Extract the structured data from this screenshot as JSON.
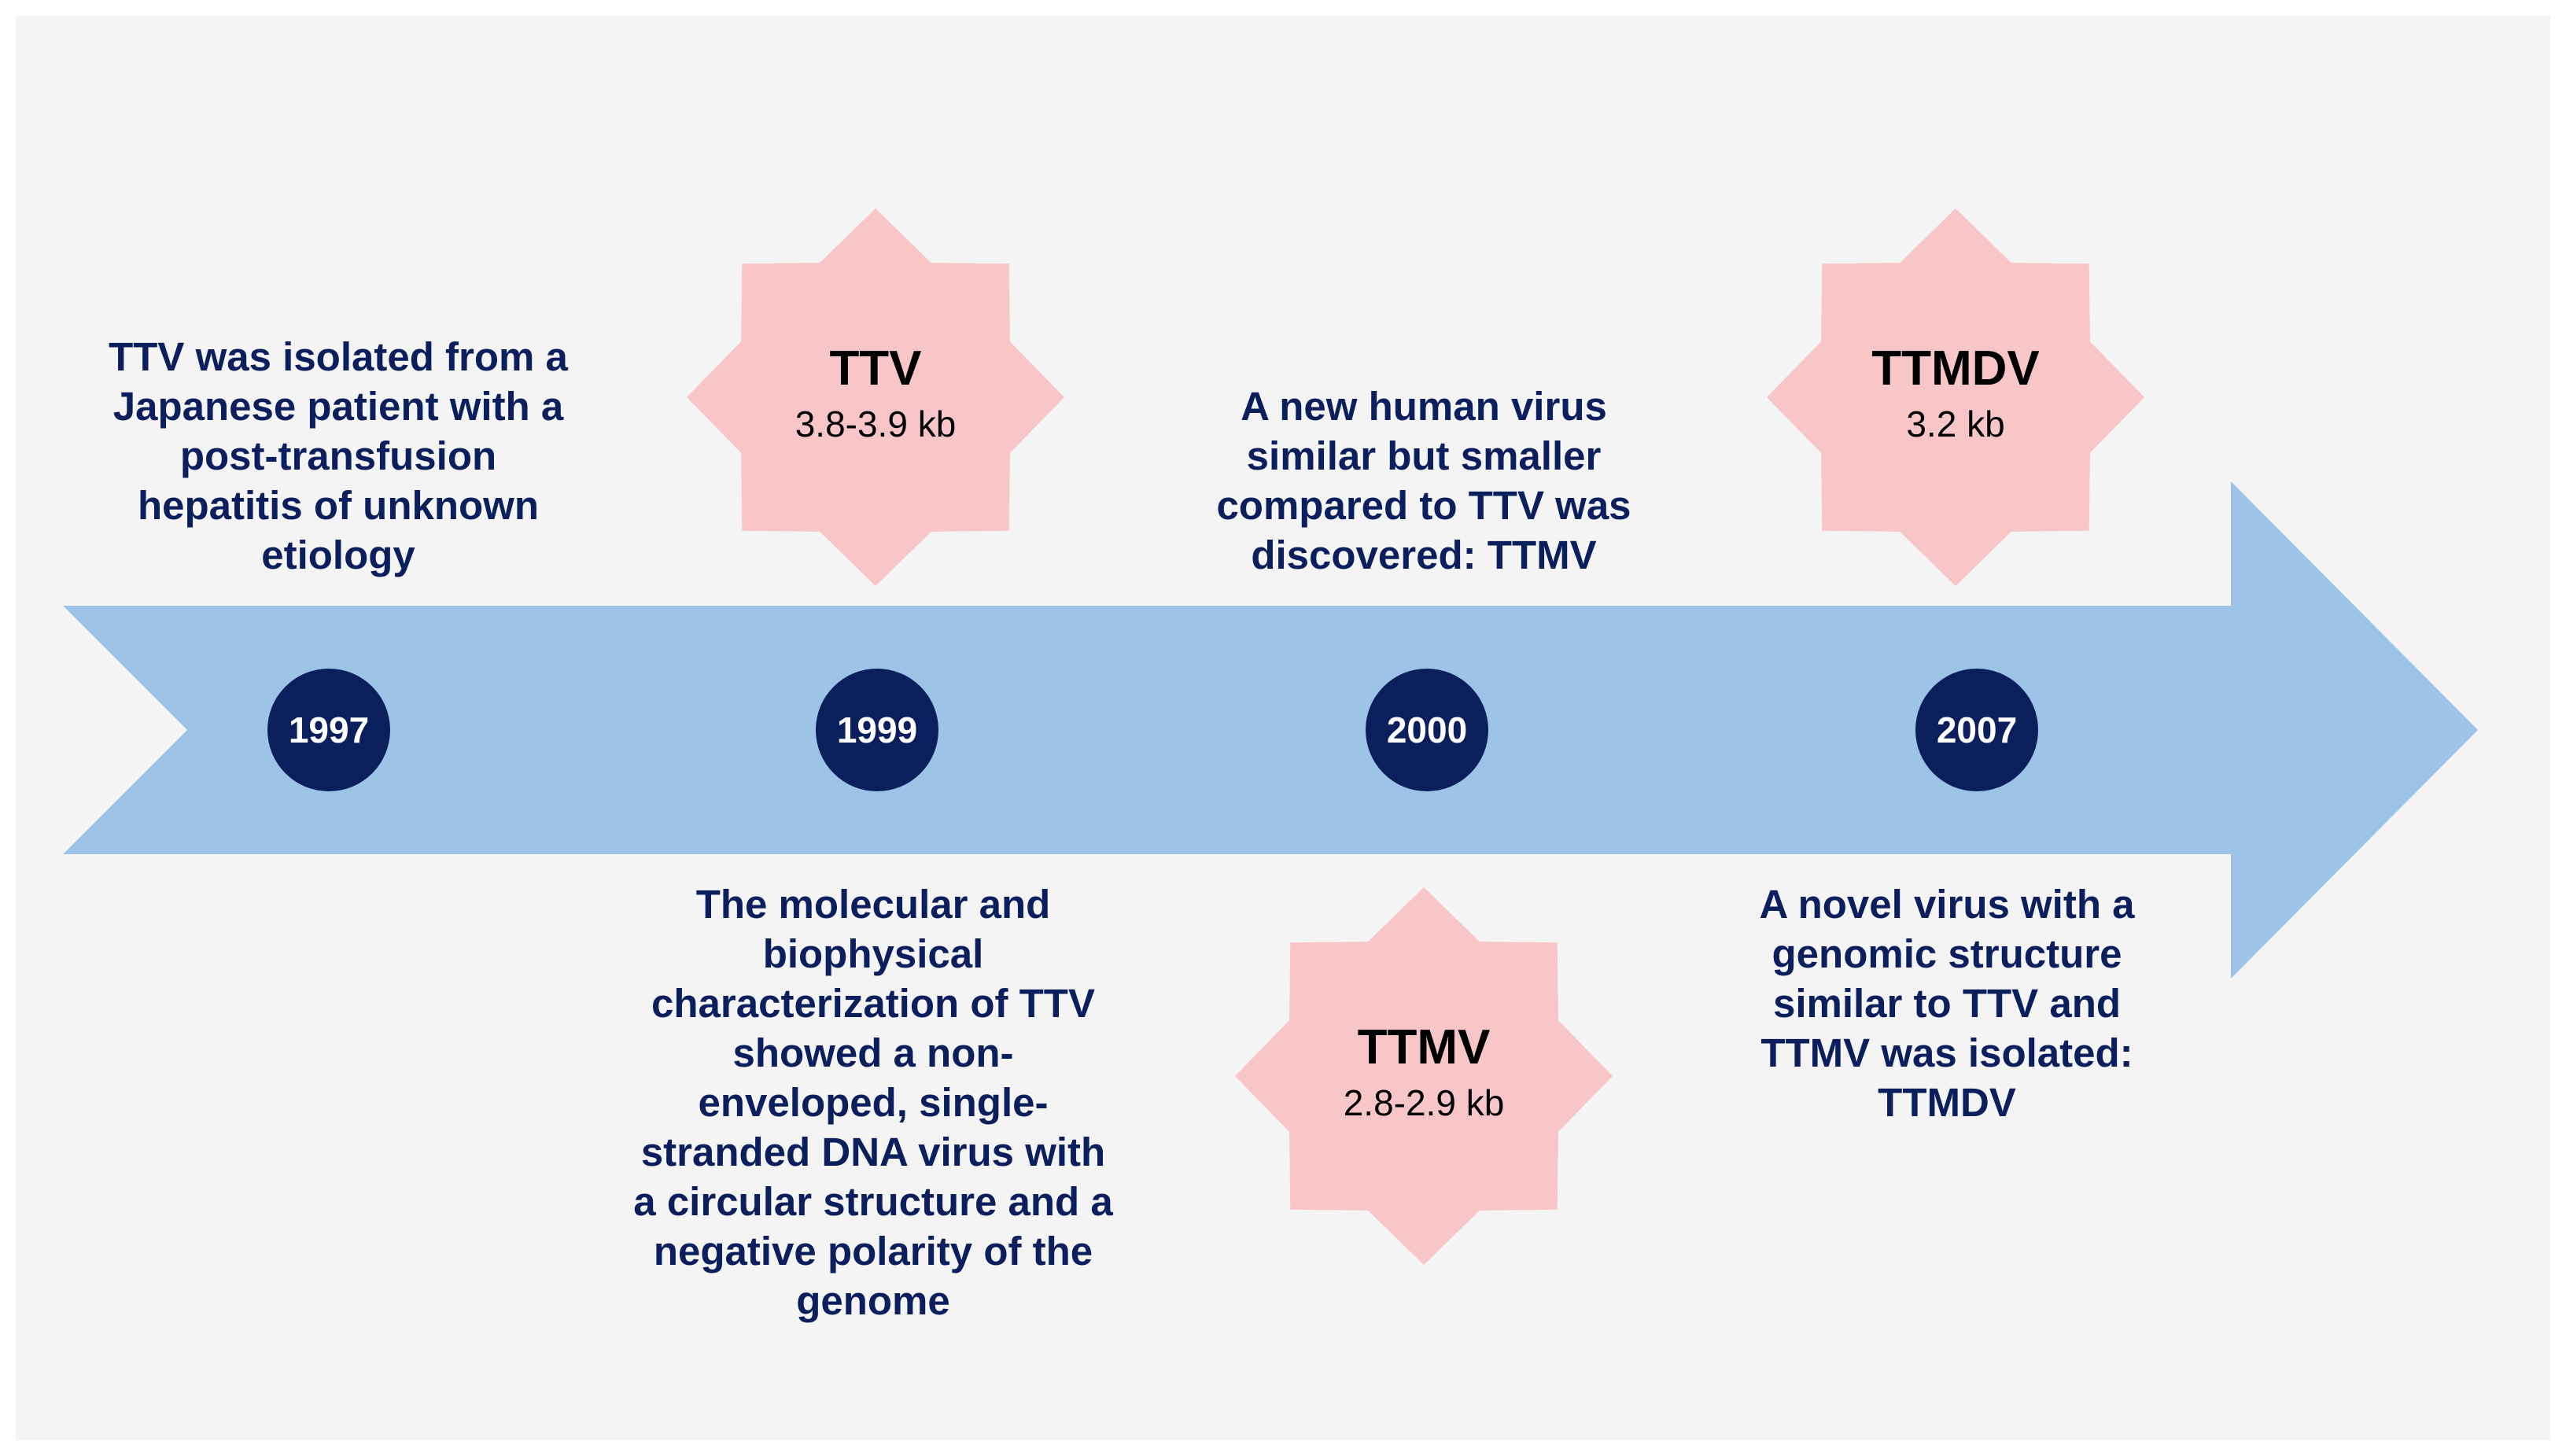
{
  "colors": {
    "background": "#f4f4f4",
    "arrow": "#9dc3e6",
    "year_circle": "#0a1f5c",
    "caption_text": "#0a1f5c",
    "virus_fill": "#f8c6c6"
  },
  "timeline": {
    "y1997": {
      "year": "1997",
      "caption": [
        "TTV was isolated from a",
        "Japanese patient with a",
        "post-transfusion",
        "hepatitis of unknown",
        "etiology"
      ]
    },
    "y1999": {
      "year": "1999",
      "caption": [
        "The molecular and",
        "biophysical",
        "characterization of TTV",
        "showed a non-",
        "enveloped, single-",
        "stranded DNA virus with",
        "a circular structure and a",
        "negative polarity of the",
        "genome"
      ]
    },
    "y2000": {
      "year": "2000",
      "caption": [
        "A new human virus",
        "similar but smaller",
        "compared to TTV was",
        "discovered: TTMV"
      ]
    },
    "y2007": {
      "year": "2007",
      "caption": [
        "A novel virus with a",
        "genomic structure",
        "similar to TTV and",
        "TTMV was isolated:",
        "TTMDV"
      ]
    }
  },
  "viruses": {
    "ttv": {
      "name": "TTV",
      "size": "3.8-3.9 kb"
    },
    "ttmv": {
      "name": "TTMV",
      "size": "2.8-2.9 kb"
    },
    "ttmdv": {
      "name": "TTMDV",
      "size": "3.2 kb"
    }
  }
}
